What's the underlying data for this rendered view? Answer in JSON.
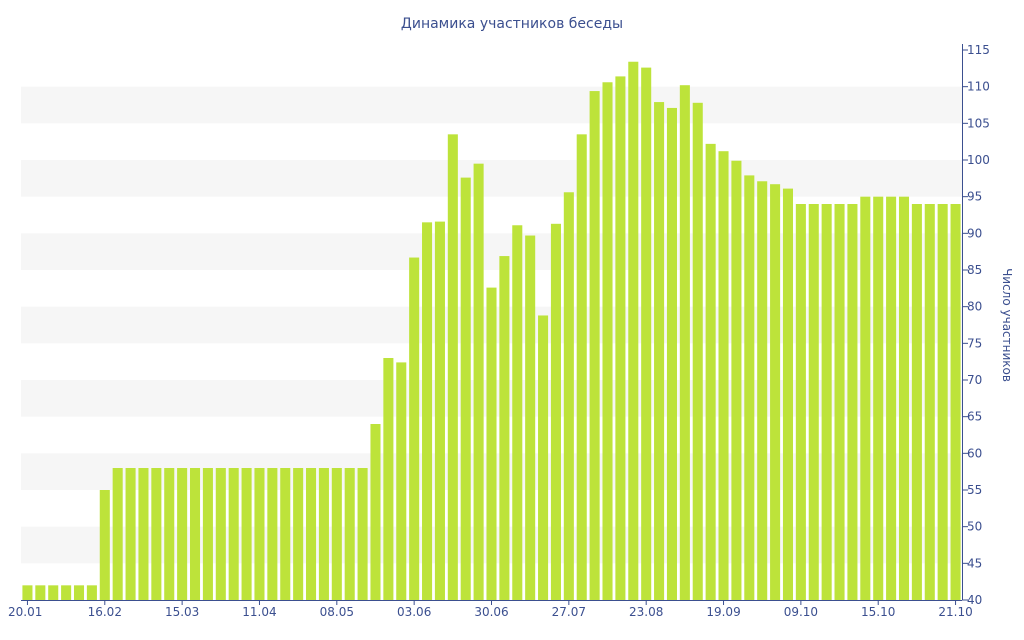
{
  "chart_data": {
    "type": "bar",
    "title": "Динамика участников беседы",
    "ylabel": "Число участников",
    "xlabel": "",
    "ylim": [
      40,
      115
    ],
    "yticks": [
      40,
      45,
      50,
      55,
      60,
      65,
      70,
      75,
      80,
      85,
      90,
      95,
      100,
      105,
      110,
      115
    ],
    "grid": "alternating horizontal bands",
    "y_axis_side": "right",
    "x_tick_labels": [
      {
        "index": 0,
        "label": "20.01"
      },
      {
        "index": 6,
        "label": "16.02"
      },
      {
        "index": 12,
        "label": "15.03"
      },
      {
        "index": 18,
        "label": "11.04"
      },
      {
        "index": 24,
        "label": "08.05"
      },
      {
        "index": 30,
        "label": "03.06"
      },
      {
        "index": 36,
        "label": "30.06"
      },
      {
        "index": 42,
        "label": "27.07"
      },
      {
        "index": 48,
        "label": "23.08"
      },
      {
        "index": 54,
        "label": "19.09"
      },
      {
        "index": 60,
        "label": "09.10"
      },
      {
        "index": 66,
        "label": "15.10"
      },
      {
        "index": 72,
        "label": "21.10"
      }
    ],
    "values": [
      42,
      42,
      42,
      42,
      42,
      42,
      55,
      58,
      58,
      58,
      58,
      58,
      58,
      58,
      58,
      58,
      58,
      58,
      58,
      58,
      58,
      58,
      58,
      58,
      58,
      58,
      58,
      64,
      73,
      72.4,
      86.7,
      91.5,
      91.6,
      103.5,
      97.6,
      99.5,
      82.6,
      86.9,
      91.1,
      89.7,
      78.8,
      91.3,
      95.6,
      103.5,
      109.4,
      110.6,
      111.4,
      113.4,
      112.6,
      107.9,
      107.1,
      110.2,
      107.8,
      102.2,
      101.2,
      99.9,
      97.9,
      97.1,
      96.7,
      96.1,
      94,
      94,
      94,
      94,
      94,
      95,
      95,
      95,
      95,
      94,
      94,
      94,
      94
    ],
    "colors": {
      "bar": "#bde33a",
      "band": "#f6f6f6",
      "text": "#3b4f8f",
      "axis": "#3b4f8f"
    }
  }
}
